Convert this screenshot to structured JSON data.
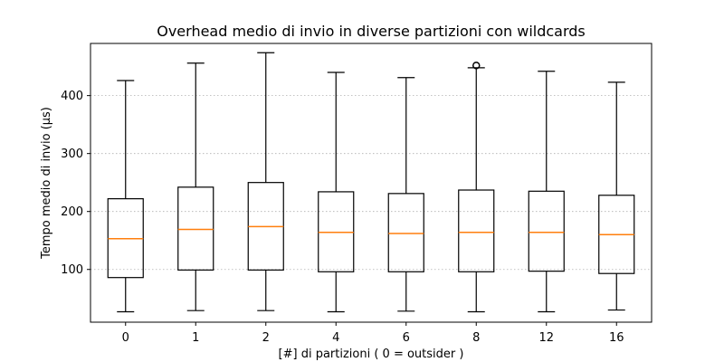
{
  "chart_data": {
    "type": "boxplot",
    "title": "Overhead medio di invio in diverse partizioni con wildcards",
    "xlabel": "[#] di partizioni ( 0 = outsider )",
    "ylabel": "Tempo medio di invio (µs)",
    "ylim": [
      9,
      490
    ],
    "yticks": [
      100,
      200,
      300,
      400
    ],
    "grid": "y-dotted",
    "categories": [
      "0",
      "1",
      "2",
      "4",
      "6",
      "8",
      "12",
      "16"
    ],
    "boxes": [
      {
        "label": "0",
        "whislo": 27,
        "q1": 86,
        "med": 153,
        "q3": 222,
        "whishi": 426,
        "fliers": []
      },
      {
        "label": "1",
        "whislo": 29,
        "q1": 99,
        "med": 169,
        "q3": 242,
        "whishi": 456,
        "fliers": []
      },
      {
        "label": "2",
        "whislo": 29,
        "q1": 99,
        "med": 174,
        "q3": 250,
        "whishi": 474,
        "fliers": []
      },
      {
        "label": "4",
        "whislo": 27,
        "q1": 96,
        "med": 164,
        "q3": 234,
        "whishi": 440,
        "fliers": []
      },
      {
        "label": "6",
        "whislo": 28,
        "q1": 96,
        "med": 162,
        "q3": 231,
        "whishi": 431,
        "fliers": []
      },
      {
        "label": "8",
        "whislo": 27,
        "q1": 96,
        "med": 164,
        "q3": 237,
        "whishi": 448,
        "fliers": [
          452
        ]
      },
      {
        "label": "12",
        "whislo": 27,
        "q1": 97,
        "med": 164,
        "q3": 235,
        "whishi": 442,
        "fliers": []
      },
      {
        "label": "16",
        "whislo": 30,
        "q1": 93,
        "med": 160,
        "q3": 228,
        "whishi": 423,
        "fliers": []
      }
    ],
    "colors": {
      "box": "#000000",
      "median": "#ff7f0e",
      "grid": "#b0b0b0"
    }
  }
}
